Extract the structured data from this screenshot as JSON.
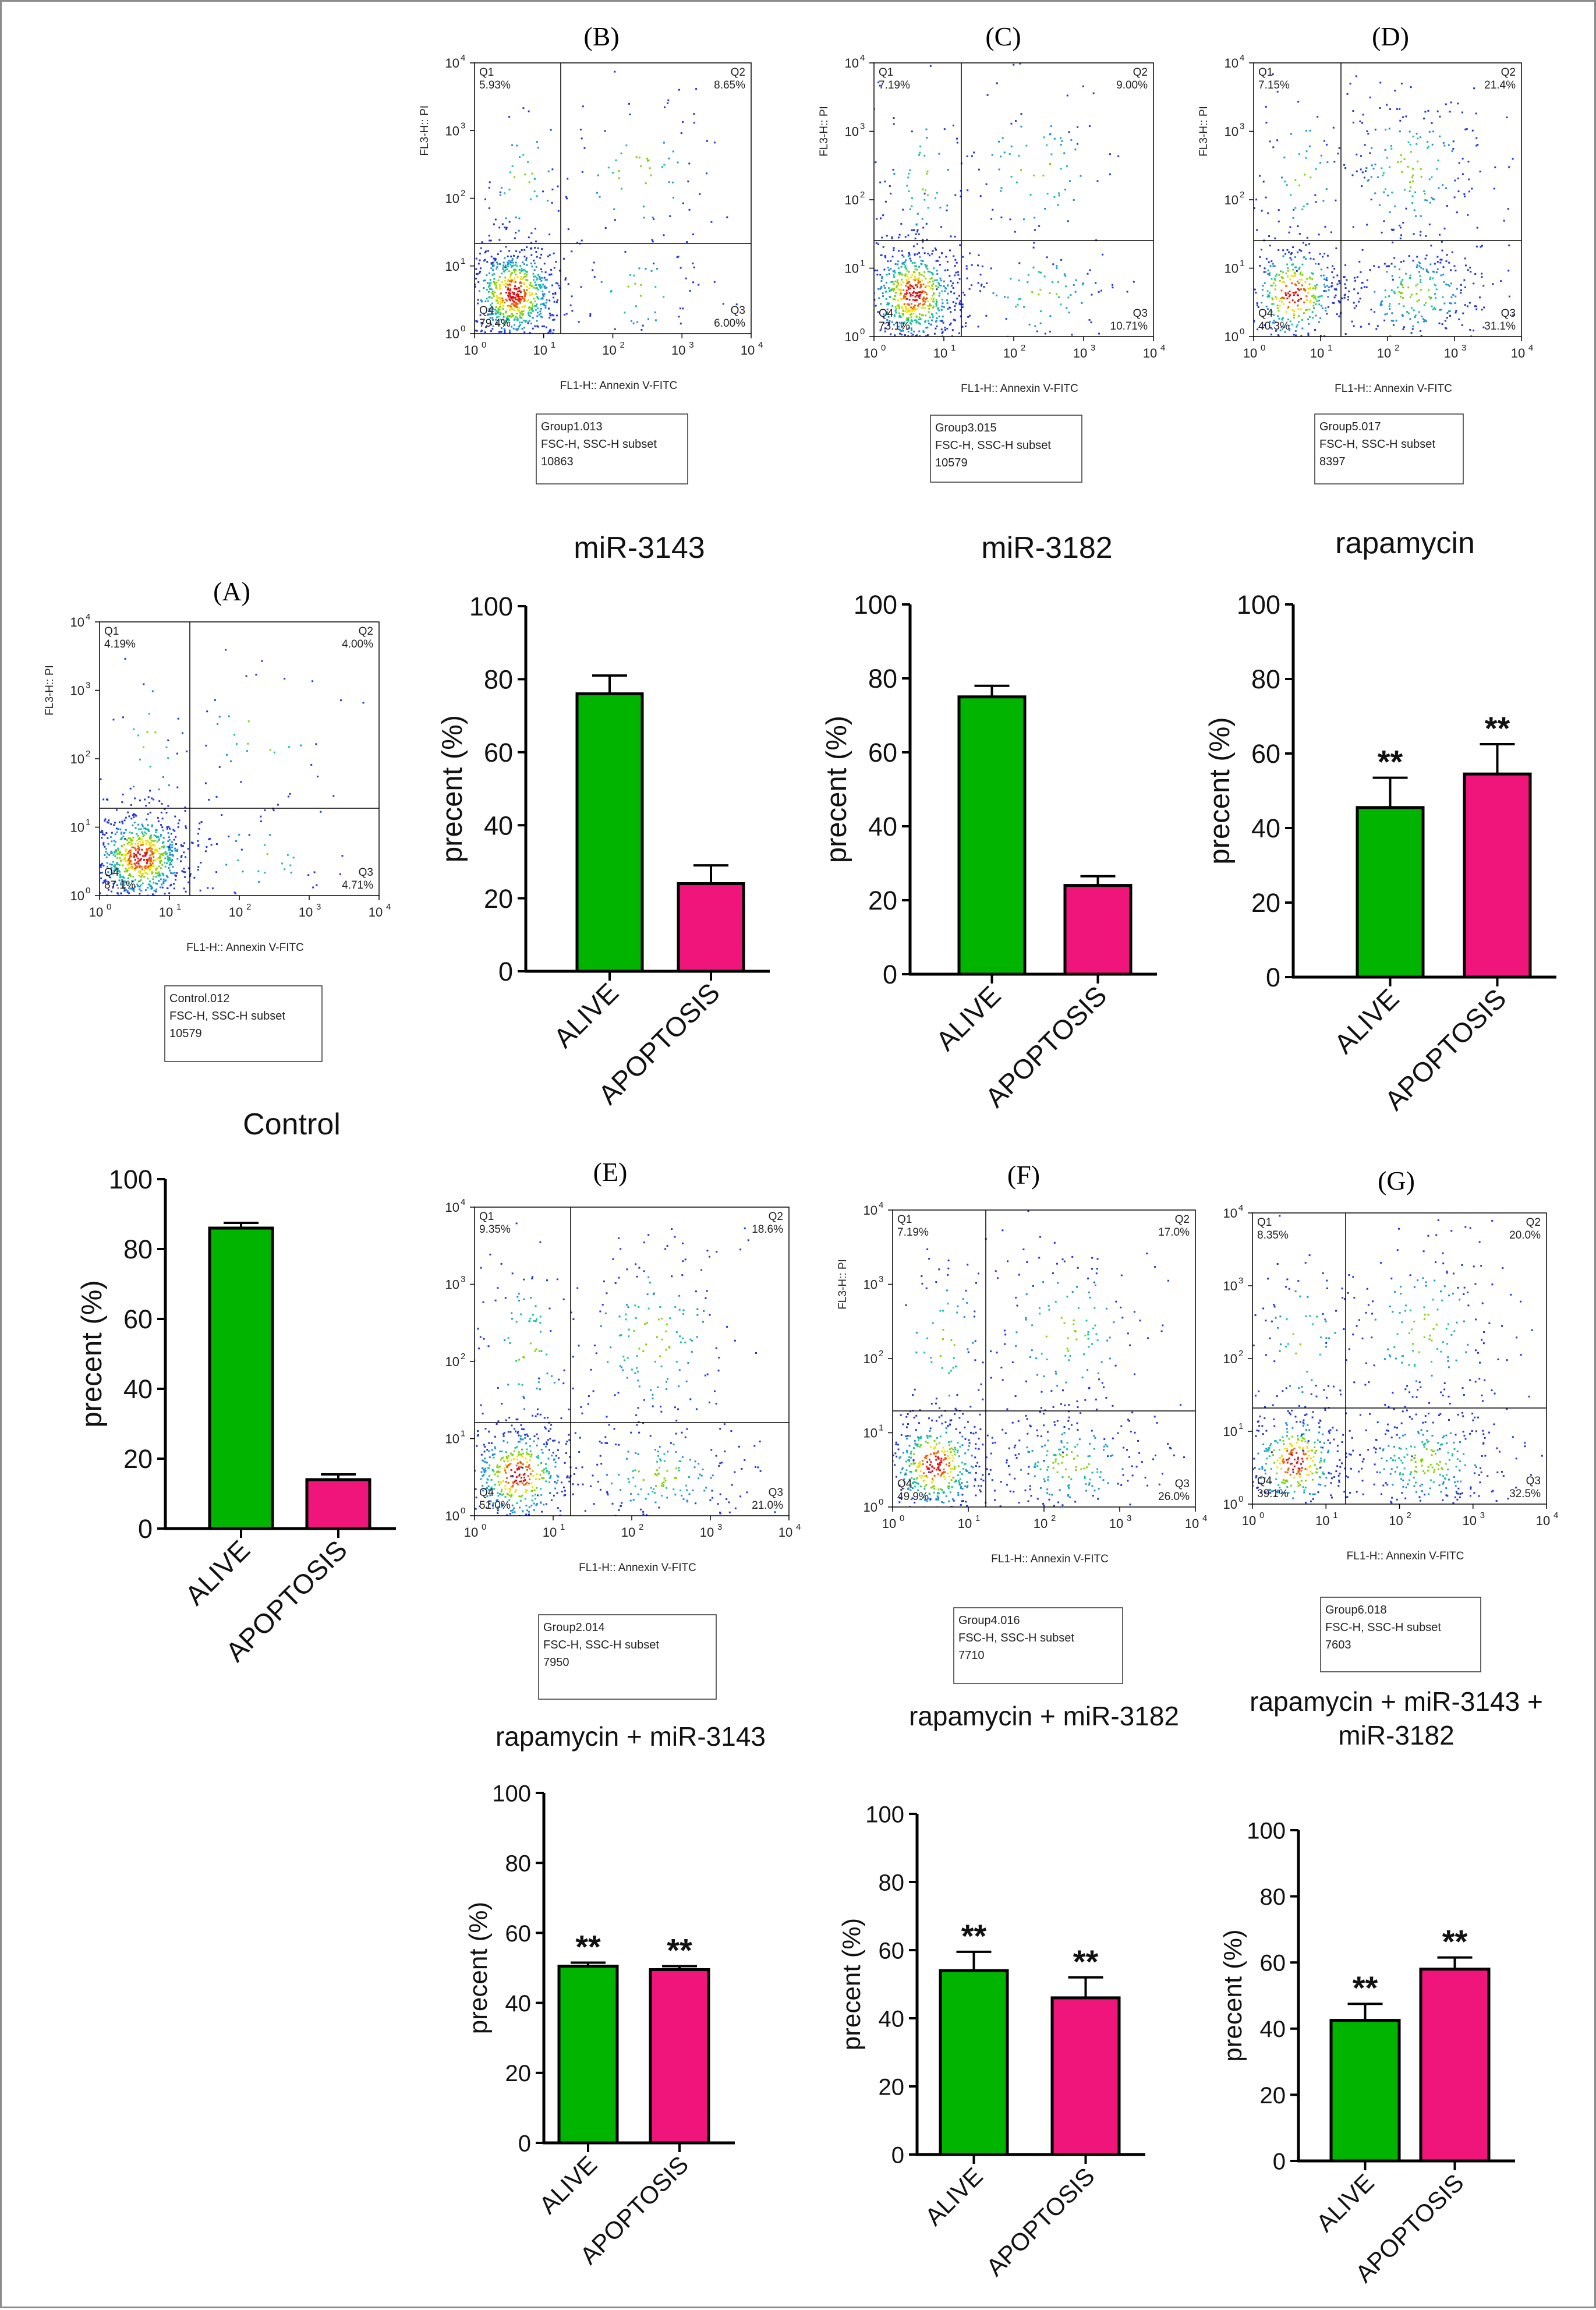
{
  "figure": {
    "colors": {
      "alive": "#00b400",
      "apoptosis": "#f0157a",
      "axis": "#000000",
      "frame": "#8c8c8c",
      "dots": [
        "#2233dd",
        "#1f8fd8",
        "#18c0a0",
        "#7fd300",
        "#f0e000",
        "#f06000",
        "#e01010"
      ]
    }
  },
  "flow_panels": [
    {
      "id": "B",
      "label": "(B)",
      "q1": "5.93%",
      "q2": "8.65%",
      "q3": "6.00%",
      "q4": "79.4%",
      "xlabel": "FL1-H:: Annexin V-FITC",
      "ylabel": "FL3-H:: PI",
      "info": [
        "Group1.013",
        "FSC-H, SSC-H subset",
        "10863"
      ]
    },
    {
      "id": "C",
      "label": "(C)",
      "q1": "7.19%",
      "q2": "9.00%",
      "q3": "10.71%",
      "q4": "73.1%",
      "xlabel": "FL1-H:: Annexin V-FITC",
      "ylabel": "FL3-H:: PI",
      "info": [
        "Group3.015",
        "FSC-H, SSC-H subset",
        "10579"
      ]
    },
    {
      "id": "D",
      "label": "(D)",
      "q1": "7.15%",
      "q2": "21.4%",
      "q3": "31.1%",
      "q4": "40.3%",
      "xlabel": "FL1-H:: Annexin V-FITC",
      "ylabel": "FL3-H:: PI",
      "info": [
        "Group5.017",
        "FSC-H, SSC-H subset",
        "8397"
      ]
    },
    {
      "id": "A",
      "label": "(A)",
      "q1": "4.19%",
      "q2": "4.00%",
      "q3": "4.71%",
      "q4": "87.1%",
      "xlabel": "FL1-H:: Annexin V-FITC",
      "ylabel": "FL3-H:: PI",
      "info": [
        "Control.012",
        "FSC-H, SSC-H subset",
        "10579"
      ]
    },
    {
      "id": "E",
      "label": "(E)",
      "q1": "9.35%",
      "q2": "18.6%",
      "q3": "21.0%",
      "q4": "51.0%",
      "xlabel": "FL1-H:: Annexin V-FITC",
      "ylabel": "",
      "info": [
        "Group2.014",
        "FSC-H, SSC-H subset",
        "7950"
      ]
    },
    {
      "id": "F",
      "label": "(F)",
      "q1": "7.19%",
      "q2": "17.0%",
      "q3": "26.0%",
      "q4": "49.9%",
      "xlabel": "FL1-H:: Annexin V-FITC",
      "ylabel": "FL3-H:: PI",
      "info": [
        "Group4.016",
        "FSC-H, SSC-H subset",
        "7710"
      ]
    },
    {
      "id": "G",
      "label": "(G)",
      "q1": "8.35%",
      "q2": "20.0%",
      "q3": "32.5%",
      "q4": "39.1%",
      "xlabel": "FL1-H:: Annexin V-FITC",
      "ylabel": "",
      "info": [
        "Group6.018",
        "FSC-H, SSC-H subset",
        "7603"
      ]
    }
  ],
  "flow_axis": {
    "x_ticks": [
      "10",
      "10",
      "10",
      "10",
      "10"
    ],
    "x_exps": [
      "0",
      "1",
      "2",
      "3",
      "4"
    ],
    "y_ticks": [
      "10",
      "10",
      "10",
      "10",
      "10"
    ],
    "y_exps": [
      "0",
      "1",
      "2",
      "3",
      "4"
    ]
  },
  "chart_data": [
    {
      "id": "miR3143",
      "type": "bar",
      "title": "miR-3143",
      "ylabel": "precent (%)",
      "ylim": [
        0,
        100
      ],
      "yticks": [
        0,
        20,
        40,
        60,
        80,
        100
      ],
      "categories": [
        "ALIVE",
        "APOPTOSIS"
      ],
      "values": [
        76,
        24
      ],
      "errors": [
        5,
        5
      ],
      "significance": [
        "",
        ""
      ]
    },
    {
      "id": "miR3182",
      "type": "bar",
      "title": "miR-3182",
      "ylabel": "precent (%)",
      "ylim": [
        0,
        100
      ],
      "yticks": [
        0,
        20,
        40,
        60,
        80,
        100
      ],
      "categories": [
        "ALIVE",
        "APOPTOSIS"
      ],
      "values": [
        75,
        24
      ],
      "errors": [
        3,
        2.5
      ],
      "significance": [
        "",
        ""
      ]
    },
    {
      "id": "rapamycin",
      "type": "bar",
      "title": "rapamycin",
      "ylabel": "precent (%)",
      "ylim": [
        0,
        100
      ],
      "yticks": [
        0,
        20,
        40,
        60,
        80,
        100
      ],
      "categories": [
        "ALIVE",
        "APOPTOSIS"
      ],
      "values": [
        45.5,
        54.5
      ],
      "errors": [
        8,
        8
      ],
      "significance": [
        "**",
        "**"
      ]
    },
    {
      "id": "control",
      "type": "bar",
      "title": "Control",
      "ylabel": "precent (%)",
      "ylim": [
        0,
        100
      ],
      "yticks": [
        0,
        20,
        40,
        60,
        80,
        100
      ],
      "categories": [
        "ALIVE",
        "APOPTOSIS"
      ],
      "values": [
        86,
        14
      ],
      "errors": [
        1.5,
        1.5
      ],
      "significance": [
        "",
        ""
      ]
    },
    {
      "id": "rapa3143",
      "type": "bar",
      "title": "rapamycin + miR-3143",
      "ylabel": "precent (%)",
      "ylim": [
        0,
        100
      ],
      "yticks": [
        0,
        20,
        40,
        60,
        80,
        100
      ],
      "categories": [
        "ALIVE",
        "APOPTOSIS"
      ],
      "values": [
        50.5,
        49.5
      ],
      "errors": [
        1,
        1
      ],
      "significance": [
        "**",
        "**"
      ]
    },
    {
      "id": "rapa3182",
      "type": "bar",
      "title": "rapamycin + miR-3182",
      "ylabel": "precent (%)",
      "ylim": [
        0,
        100
      ],
      "yticks": [
        0,
        20,
        40,
        60,
        80,
        100
      ],
      "categories": [
        "ALIVE",
        "APOPTOSIS"
      ],
      "values": [
        54,
        46
      ],
      "errors": [
        5.5,
        6
      ],
      "significance": [
        "**",
        "**"
      ]
    },
    {
      "id": "rapaBoth",
      "type": "bar",
      "title": "rapamycin + miR-3143 +",
      "title_line2": "miR-3182",
      "ylabel": "precent (%)",
      "ylim": [
        0,
        100
      ],
      "yticks": [
        0,
        20,
        40,
        60,
        80,
        100
      ],
      "categories": [
        "ALIVE",
        "APOPTOSIS"
      ],
      "values": [
        42.5,
        58
      ],
      "errors": [
        5,
        3.5
      ],
      "significance": [
        "**",
        "**"
      ]
    }
  ]
}
